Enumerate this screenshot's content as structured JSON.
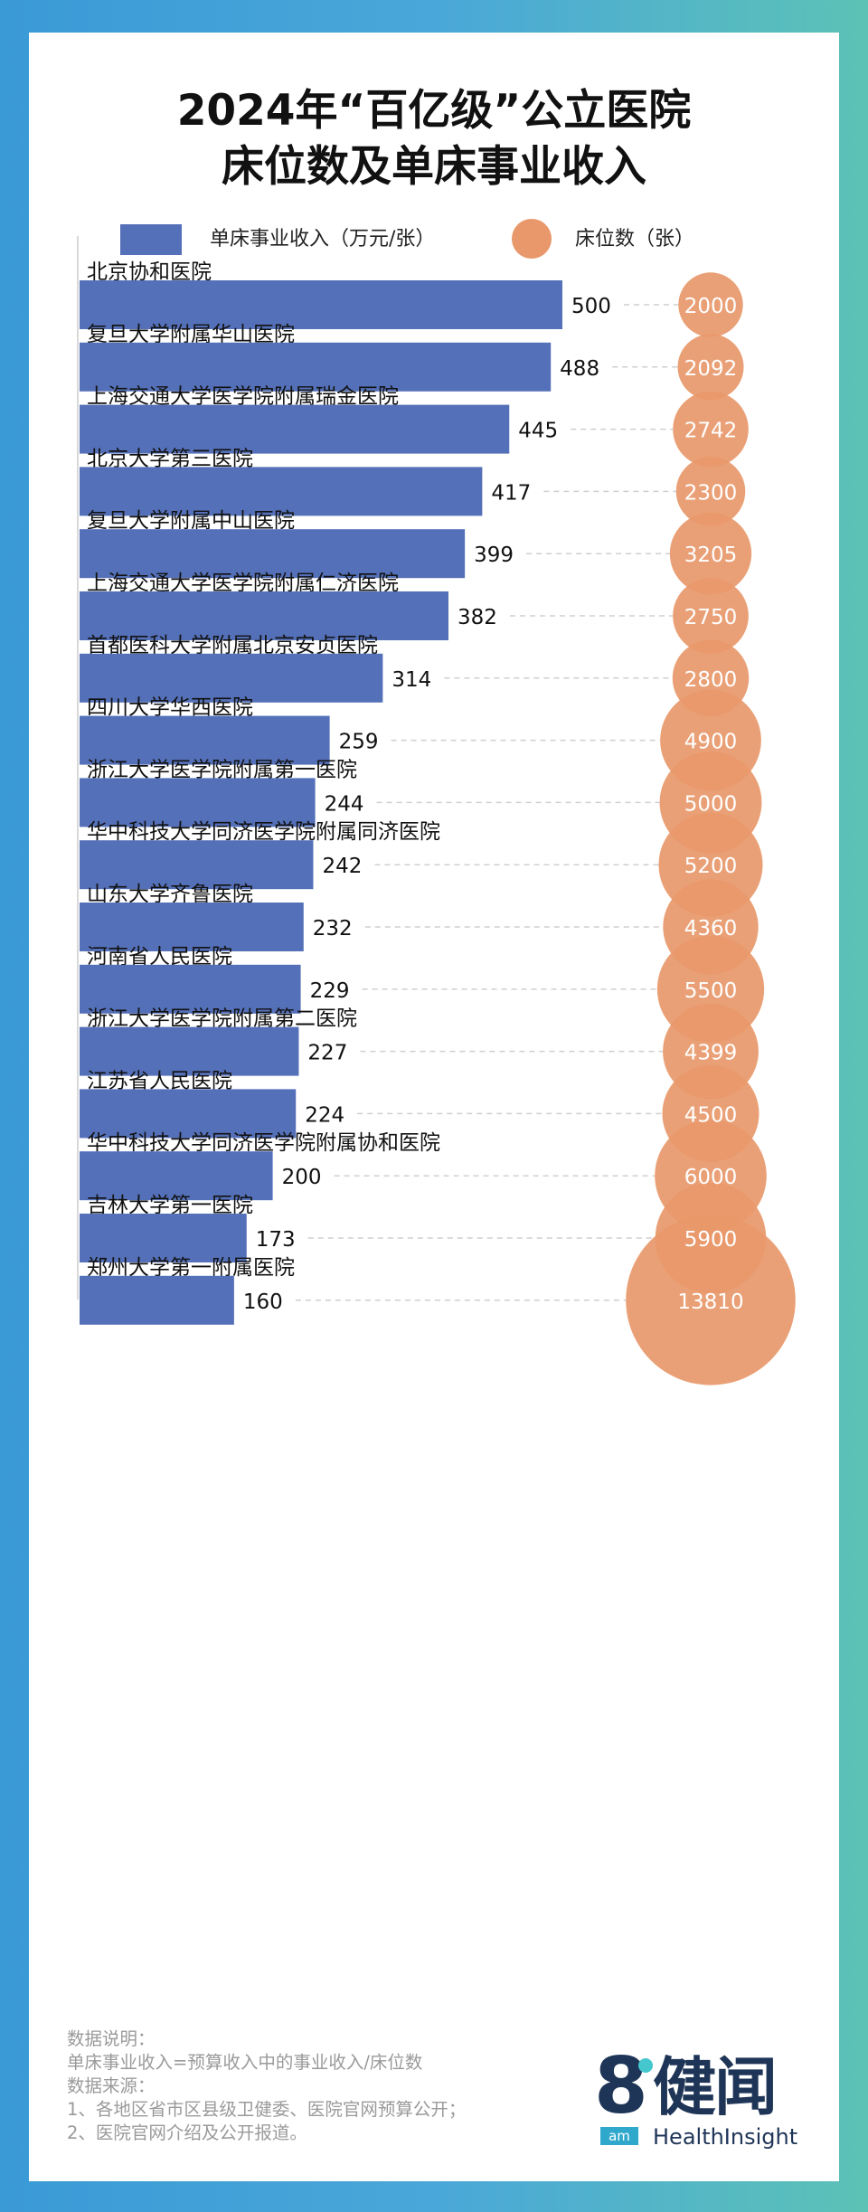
{
  "title_line1": "2024年“百亿级”公立医院",
  "title_line2": "床位数及单床事业收入",
  "legend": {
    "bar_label": "单床事业收入（万元/张）",
    "bubble_label": "床位数（张）"
  },
  "colors": {
    "bar": "#5470b8",
    "bubble": "#e8986a",
    "dash": "#cfcfcf"
  },
  "chart_data": {
    "type": "bar",
    "orientation": "horizontal",
    "categories": [
      "北京协和医院",
      "复旦大学附属华山医院",
      "上海交通大学医学院附属瑞金医院",
      "北京大学第三医院",
      "复旦大学附属中山医院",
      "上海交通大学医学院附属仁济医院",
      "首都医科大学附属北京安贞医院",
      "四川大学华西医院",
      "浙江大学医学院附属第一医院",
      "华中科技大学同济医学院附属同济医院",
      "山东大学齐鲁医院",
      "河南省人民医院",
      "浙江大学医学院附属第二医院",
      "江苏省人民医院",
      "华中科技大学同济医学院附属协和医院",
      "吉林大学第一医院",
      "郑州大学第一附属医院"
    ],
    "series": [
      {
        "name": "单床事业收入（万元/张）",
        "values": [
          500,
          488,
          445,
          417,
          399,
          382,
          314,
          259,
          244,
          242,
          232,
          229,
          227,
          224,
          200,
          173,
          160
        ]
      },
      {
        "name": "床位数（张）",
        "values": [
          2000,
          2092,
          2742,
          2300,
          3205,
          2750,
          2800,
          4900,
          5000,
          5200,
          4360,
          5500,
          4399,
          4500,
          6000,
          5900,
          13810
        ]
      }
    ],
    "legend_position": "top"
  },
  "notes": [
    "数据说明：",
    "单床事业收入=预算收入中的事业收入/床位数",
    "数据来源：",
    "1、各地区省市区县级卫健委、医院官网预算公开；",
    "2、医院官网介绍及公开报道。"
  ],
  "logo": {
    "mark": "8",
    "mark_sub": "am",
    "name_cn": "健闻",
    "name_en": "HealthInsight"
  }
}
